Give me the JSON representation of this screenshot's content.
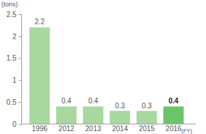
{
  "chart_data": {
    "type": "bar",
    "y_label": "(tons)",
    "x_label": "(FY)",
    "categories": [
      "1996",
      "2012",
      "2013",
      "2014",
      "2015",
      "2016"
    ],
    "values": [
      2.2,
      0.4,
      0.4,
      0.3,
      0.3,
      0.4
    ],
    "colors": [
      "#a8d8a0",
      "#a8d8a0",
      "#a8d8a0",
      "#a8d8a0",
      "#a8d8a0",
      "#6cc46a"
    ],
    "ylim": [
      0,
      2.5
    ],
    "yticks": [
      0,
      0.5,
      1,
      1.5,
      2,
      2.5
    ],
    "grid": false,
    "data_labels": true
  }
}
